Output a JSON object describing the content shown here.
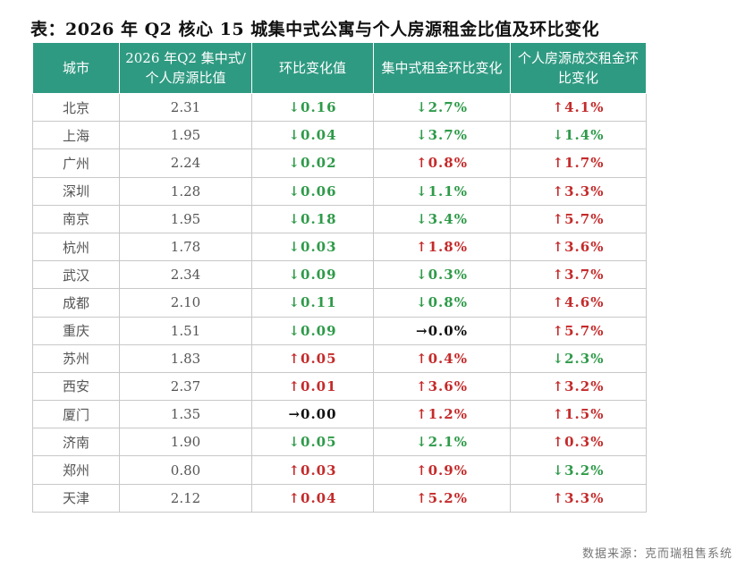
{
  "title": "表：2026 年 Q2 核心 15 城集中式公寓与个人房源租金比值及环比变化",
  "table": {
    "headers": [
      "城市",
      "2026 年Q2 集中式/个人房源比值",
      "环比变化值",
      "集中式租金环比变化",
      "个人房源成交租金环比变化"
    ],
    "rows": [
      {
        "city": "北京",
        "ratio": "2.31",
        "change": {
          "arrow": "↓",
          "value": "0.16",
          "dir": "down"
        },
        "central": {
          "arrow": "↓",
          "value": "2.7%",
          "dir": "down"
        },
        "personal": {
          "arrow": "↑",
          "value": "4.1%",
          "dir": "up"
        }
      },
      {
        "city": "上海",
        "ratio": "1.95",
        "change": {
          "arrow": "↓",
          "value": "0.04",
          "dir": "down"
        },
        "central": {
          "arrow": "↓",
          "value": "3.7%",
          "dir": "down"
        },
        "personal": {
          "arrow": "↓",
          "value": "1.4%",
          "dir": "down"
        }
      },
      {
        "city": "广州",
        "ratio": "2.24",
        "change": {
          "arrow": "↓",
          "value": "0.02",
          "dir": "down"
        },
        "central": {
          "arrow": "↑",
          "value": "0.8%",
          "dir": "up"
        },
        "personal": {
          "arrow": "↑",
          "value": "1.7%",
          "dir": "up"
        }
      },
      {
        "city": "深圳",
        "ratio": "1.28",
        "change": {
          "arrow": "↓",
          "value": "0.06",
          "dir": "down"
        },
        "central": {
          "arrow": "↓",
          "value": "1.1%",
          "dir": "down"
        },
        "personal": {
          "arrow": "↑",
          "value": "3.3%",
          "dir": "up"
        }
      },
      {
        "city": "南京",
        "ratio": "1.95",
        "change": {
          "arrow": "↓",
          "value": "0.18",
          "dir": "down"
        },
        "central": {
          "arrow": "↓",
          "value": "3.4%",
          "dir": "down"
        },
        "personal": {
          "arrow": "↑",
          "value": "5.7%",
          "dir": "up"
        }
      },
      {
        "city": "杭州",
        "ratio": "1.78",
        "change": {
          "arrow": "↓",
          "value": "0.03",
          "dir": "down"
        },
        "central": {
          "arrow": "↑",
          "value": "1.8%",
          "dir": "up"
        },
        "personal": {
          "arrow": "↑",
          "value": "3.6%",
          "dir": "up"
        }
      },
      {
        "city": "武汉",
        "ratio": "2.34",
        "change": {
          "arrow": "↓",
          "value": "0.09",
          "dir": "down"
        },
        "central": {
          "arrow": "↓",
          "value": "0.3%",
          "dir": "down"
        },
        "personal": {
          "arrow": "↑",
          "value": "3.7%",
          "dir": "up"
        }
      },
      {
        "city": "成都",
        "ratio": "2.10",
        "change": {
          "arrow": "↓",
          "value": "0.11",
          "dir": "down"
        },
        "central": {
          "arrow": "↓",
          "value": "0.8%",
          "dir": "down"
        },
        "personal": {
          "arrow": "↑",
          "value": "4.6%",
          "dir": "up"
        }
      },
      {
        "city": "重庆",
        "ratio": "1.51",
        "change": {
          "arrow": "↓",
          "value": "0.09",
          "dir": "down"
        },
        "central": {
          "arrow": "→",
          "value": "0.0%",
          "dir": "flat"
        },
        "personal": {
          "arrow": "↑",
          "value": "5.7%",
          "dir": "up"
        }
      },
      {
        "city": "苏州",
        "ratio": "1.83",
        "change": {
          "arrow": "↑",
          "value": "0.05",
          "dir": "up"
        },
        "central": {
          "arrow": "↑",
          "value": "0.4%",
          "dir": "up"
        },
        "personal": {
          "arrow": "↓",
          "value": "2.3%",
          "dir": "down"
        }
      },
      {
        "city": "西安",
        "ratio": "2.37",
        "change": {
          "arrow": "↑",
          "value": "0.01",
          "dir": "up"
        },
        "central": {
          "arrow": "↑",
          "value": "3.6%",
          "dir": "up"
        },
        "personal": {
          "arrow": "↑",
          "value": "3.2%",
          "dir": "up"
        }
      },
      {
        "city": "厦门",
        "ratio": "1.35",
        "change": {
          "arrow": "→",
          "value": "0.00",
          "dir": "flat"
        },
        "central": {
          "arrow": "↑",
          "value": "1.2%",
          "dir": "up"
        },
        "personal": {
          "arrow": "↑",
          "value": "1.5%",
          "dir": "up"
        }
      },
      {
        "city": "济南",
        "ratio": "1.90",
        "change": {
          "arrow": "↓",
          "value": "0.05",
          "dir": "down"
        },
        "central": {
          "arrow": "↓",
          "value": "2.1%",
          "dir": "down"
        },
        "personal": {
          "arrow": "↑",
          "value": "0.3%",
          "dir": "up"
        }
      },
      {
        "city": "郑州",
        "ratio": "0.80",
        "change": {
          "arrow": "↑",
          "value": "0.03",
          "dir": "up"
        },
        "central": {
          "arrow": "↑",
          "value": "0.9%",
          "dir": "up"
        },
        "personal": {
          "arrow": "↓",
          "value": "3.2%",
          "dir": "down"
        }
      },
      {
        "city": "天津",
        "ratio": "2.12",
        "change": {
          "arrow": "↑",
          "value": "0.04",
          "dir": "up"
        },
        "central": {
          "arrow": "↑",
          "value": "5.2%",
          "dir": "up"
        },
        "personal": {
          "arrow": "↑",
          "value": "3.3%",
          "dir": "up"
        }
      }
    ]
  },
  "source": "数据来源：克而瑞租售系统",
  "colors": {
    "header_bg": "#2f9a82",
    "up": "#c42a2a",
    "down": "#2e9a49",
    "flat": "#111111"
  }
}
